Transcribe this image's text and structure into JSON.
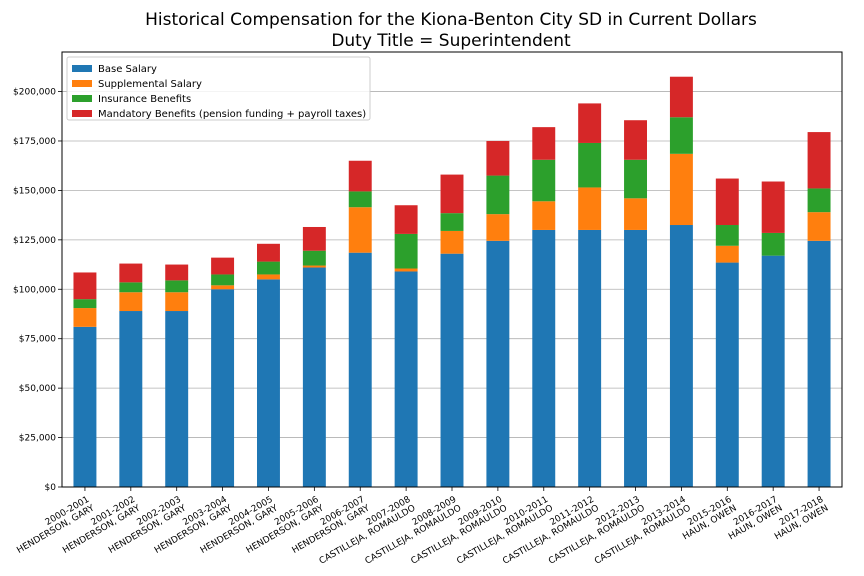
{
  "chart_data": {
    "type": "bar",
    "stacked": true,
    "title": "Historical Compensation for the Kiona-Benton City SD in Current Dollars",
    "subtitle": "Duty Title = Superintendent",
    "xlabel": "",
    "ylabel": "",
    "ylim": [
      0,
      220000
    ],
    "y_ticks": [
      0,
      25000,
      50000,
      75000,
      100000,
      125000,
      150000,
      175000,
      200000
    ],
    "y_tick_labels": [
      "$0",
      "$25,000",
      "$50,000",
      "$75,000",
      "$100,000",
      "$125,000",
      "$150,000",
      "$175,000",
      "$200,000"
    ],
    "grid": "horizontal",
    "legend_position": "top-left",
    "categories": [
      {
        "year": "2000-2001",
        "name": "HENDERSON, GARY"
      },
      {
        "year": "2001-2002",
        "name": "HENDERSON, GARY"
      },
      {
        "year": "2002-2003",
        "name": "HENDERSON, GARY"
      },
      {
        "year": "2003-2004",
        "name": "HENDERSON, GARY"
      },
      {
        "year": "2004-2005",
        "name": "HENDERSON, GARY"
      },
      {
        "year": "2005-2006",
        "name": "HENDERSON, GARY"
      },
      {
        "year": "2006-2007",
        "name": "HENDERSON, GARY"
      },
      {
        "year": "2007-2008",
        "name": "CASTILLEJA, ROMAULDO"
      },
      {
        "year": "2008-2009",
        "name": "CASTILLEJA, ROMAULDO"
      },
      {
        "year": "2009-2010",
        "name": "CASTILLEJA, ROMAULDO"
      },
      {
        "year": "2010-2011",
        "name": "CASTILLEJA, ROMAULDO"
      },
      {
        "year": "2011-2012",
        "name": "CASTILLEJA, ROMAULDO"
      },
      {
        "year": "2012-2013",
        "name": "CASTILLEJA, ROMAULDO"
      },
      {
        "year": "2013-2014",
        "name": "CASTILLEJA, ROMAULDO"
      },
      {
        "year": "2015-2016",
        "name": "HAUN, OWEN"
      },
      {
        "year": "2016-2017",
        "name": "HAUN, OWEN"
      },
      {
        "year": "2017-2018",
        "name": "HAUN, OWEN"
      }
    ],
    "series": [
      {
        "name": "Base Salary",
        "color": "#1f77b4",
        "values": [
          81000,
          89000,
          89000,
          100000,
          105000,
          111000,
          118500,
          109000,
          118000,
          124500,
          130000,
          130000,
          130000,
          132500,
          113500,
          117000,
          124500
        ]
      },
      {
        "name": "Supplemental Salary",
        "color": "#ff7f0e",
        "values": [
          9500,
          9500,
          9500,
          2000,
          2500,
          1000,
          23000,
          1500,
          11500,
          13500,
          14500,
          21500,
          16000,
          36000,
          8500,
          0,
          14500
        ]
      },
      {
        "name": "Insurance Benefits",
        "color": "#2ca02c",
        "values": [
          4500,
          5000,
          6000,
          5500,
          6500,
          7500,
          8000,
          17500,
          9000,
          19500,
          21000,
          22500,
          19500,
          18500,
          10500,
          11500,
          12000
        ]
      },
      {
        "name": "Mandatory Benefits (pension funding + payroll taxes)",
        "color": "#d62728",
        "values": [
          13500,
          9500,
          8000,
          8500,
          9000,
          12000,
          15500,
          14500,
          19500,
          17500,
          16500,
          20000,
          20000,
          20500,
          23500,
          26000,
          28500
        ]
      }
    ]
  }
}
